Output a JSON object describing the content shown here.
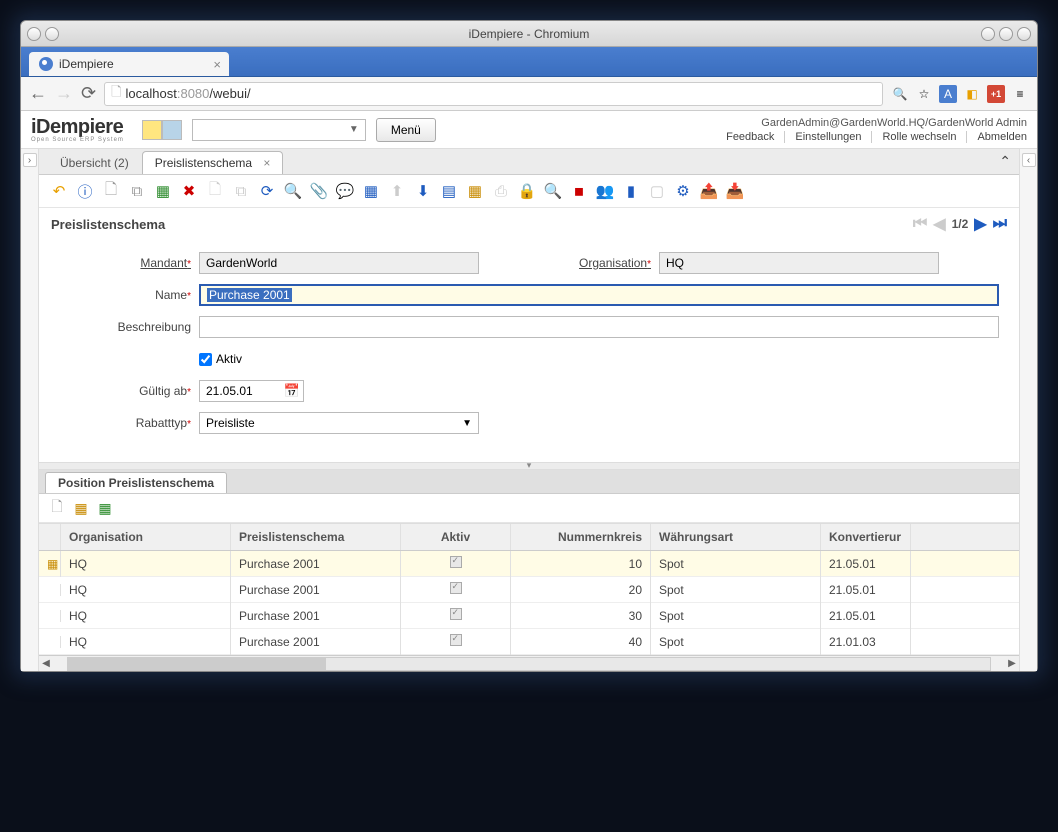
{
  "window": {
    "title": "iDempiere - Chromium"
  },
  "browser": {
    "tab_title": "iDempiere",
    "url_host": "localhost",
    "url_port": ":8080",
    "url_path": "/webui/"
  },
  "header": {
    "logo": "iDempiere",
    "logo_sub": "Open Source ERP System",
    "menu_button": "Menü",
    "user_line": "GardenAdmin@GardenWorld.HQ/GardenWorld Admin",
    "links": {
      "feedback": "Feedback",
      "settings": "Einstellungen",
      "role": "Rolle wechseln",
      "logout": "Abmelden"
    }
  },
  "tabs": {
    "overview": "Übersicht (2)",
    "active": "Preislistenschema"
  },
  "breadcrumb": "Preislistenschema",
  "pager": {
    "text": "1/2"
  },
  "form": {
    "labels": {
      "mandant": "Mandant",
      "org": "Organisation",
      "name": "Name",
      "beschreibung": "Beschreibung",
      "aktiv": "Aktiv",
      "gueltig": "Gültig ab",
      "rabatt": "Rabatttyp"
    },
    "values": {
      "mandant": "GardenWorld",
      "org": "HQ",
      "name": "Purchase 2001",
      "beschreibung": "",
      "aktiv_checked": true,
      "gueltig": "21.05.01",
      "rabatt": "Preisliste"
    }
  },
  "subtab": "Position Preislistenschema",
  "grid": {
    "columns": {
      "org": "Organisation",
      "schema": "Preislistenschema",
      "aktiv": "Aktiv",
      "nummer": "Nummernkreis",
      "waehrung": "Währungsart",
      "konv": "Konvertierur"
    },
    "rows": [
      {
        "org": "HQ",
        "schema": "Purchase 2001",
        "aktiv": true,
        "nummer": "10",
        "waehrung": "Spot",
        "konv": "21.05.01",
        "selected": true
      },
      {
        "org": "HQ",
        "schema": "Purchase 2001",
        "aktiv": true,
        "nummer": "20",
        "waehrung": "Spot",
        "konv": "21.05.01",
        "selected": false
      },
      {
        "org": "HQ",
        "schema": "Purchase 2001",
        "aktiv": true,
        "nummer": "30",
        "waehrung": "Spot",
        "konv": "21.05.01",
        "selected": false
      },
      {
        "org": "HQ",
        "schema": "Purchase 2001",
        "aktiv": true,
        "nummer": "40",
        "waehrung": "Spot",
        "konv": "21.01.03",
        "selected": false
      }
    ]
  },
  "colors": {
    "accent": "#1e5bbf",
    "highlight_bg": "#fffce6",
    "chrome_blue": "#3a6ebf"
  }
}
